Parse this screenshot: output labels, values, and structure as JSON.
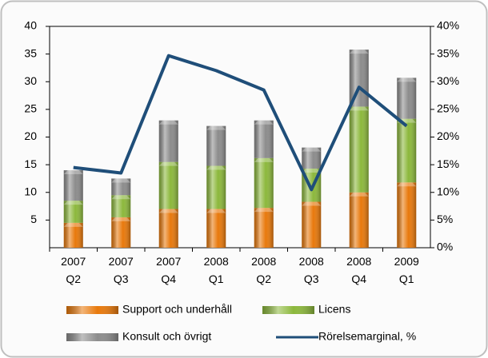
{
  "chart_data": {
    "type": "bar",
    "stacked": true,
    "categories": [
      "2007 Q2",
      "2007 Q3",
      "2007 Q4",
      "2008 Q1",
      "2008 Q2",
      "2008 Q3",
      "2008 Q4",
      "2009 Q1"
    ],
    "series": [
      {
        "name": "Support och underhåll",
        "color": "#e8790c",
        "values": [
          4.5,
          5.5,
          7,
          7,
          7.2,
          8.3,
          10,
          11.8
        ]
      },
      {
        "name": "Licens",
        "color": "#8cb83c",
        "values": [
          4,
          4,
          8.5,
          7.8,
          9,
          6,
          15.5,
          11.5
        ]
      },
      {
        "name": "Konsult och övrigt",
        "color": "#8c8c8c",
        "values": [
          5.5,
          3,
          7.5,
          7.2,
          6.8,
          3.8,
          10.3,
          7.4
        ]
      },
      {
        "name": "Rörelsemarginal, %",
        "color": "#1f4e79",
        "type": "line",
        "axis": "y2",
        "values": [
          14.5,
          13.5,
          34.7,
          32,
          28.5,
          10.5,
          29,
          22
        ]
      }
    ],
    "ylim": [
      0,
      40
    ],
    "yticks": [
      5,
      10,
      15,
      20,
      25,
      30,
      35,
      40
    ],
    "y2lim": [
      0,
      40
    ],
    "y2ticks": [
      {
        "value": 0,
        "label": "0%"
      },
      {
        "value": 5,
        "label": "5%"
      },
      {
        "value": 10,
        "label": "10%"
      },
      {
        "value": 15,
        "label": "15%"
      },
      {
        "value": 20,
        "label": "20%"
      },
      {
        "value": 25,
        "label": "25%"
      },
      {
        "value": 30,
        "label": "30%"
      },
      {
        "value": 35,
        "label": "35%"
      },
      {
        "value": 40,
        "label": "40%"
      }
    ],
    "legend": "bottom"
  }
}
